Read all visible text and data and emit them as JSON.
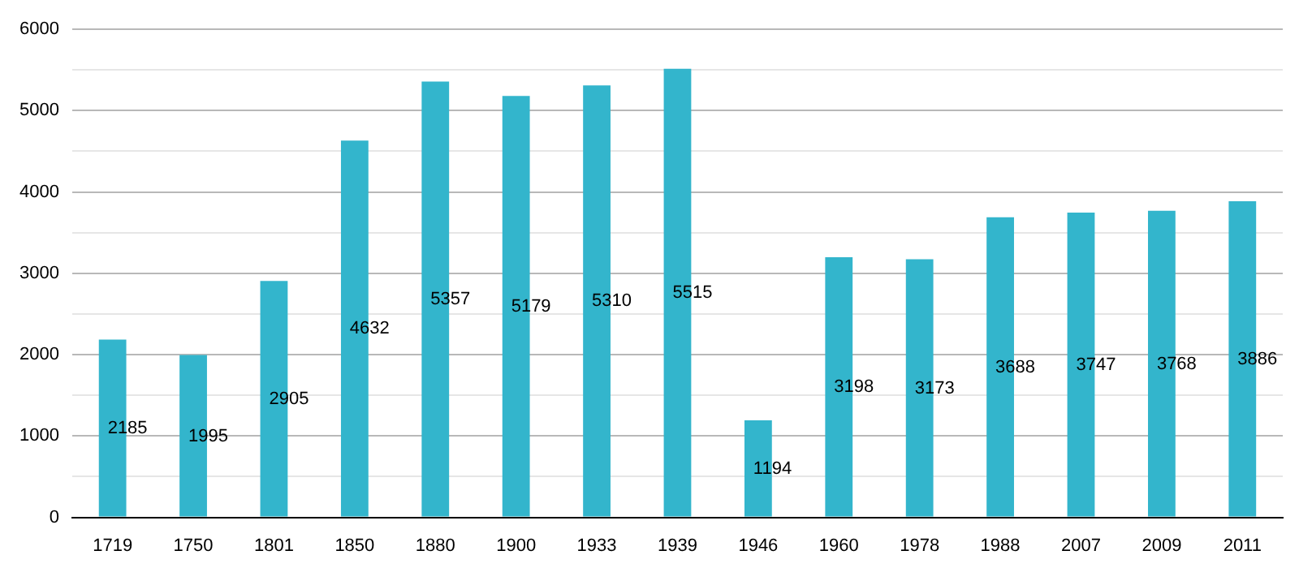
{
  "chart_data": {
    "type": "bar",
    "categories": [
      "1719",
      "1750",
      "1801",
      "1850",
      "1880",
      "1900",
      "1933",
      "1939",
      "1946",
      "1960",
      "1978",
      "1988",
      "2007",
      "2009",
      "2011"
    ],
    "values": [
      2185,
      1995,
      2905,
      4632,
      5357,
      5179,
      5310,
      5515,
      1194,
      3198,
      3173,
      3688,
      3747,
      3768,
      3886
    ],
    "color": "#33b5cc",
    "data_labels": true,
    "ylim": [
      0,
      6000
    ],
    "yticks": [
      0,
      {
        "value": 500,
        "label": null
      },
      1000,
      {
        "value": 1500,
        "label": null
      },
      2000,
      {
        "value": 2500,
        "label": null
      },
      3000,
      {
        "value": 3500,
        "label": null
      },
      4000,
      {
        "value": 4500,
        "label": null
      },
      5000,
      {
        "value": 5500,
        "label": null
      },
      6000
    ],
    "grid": "y",
    "legend": false
  }
}
